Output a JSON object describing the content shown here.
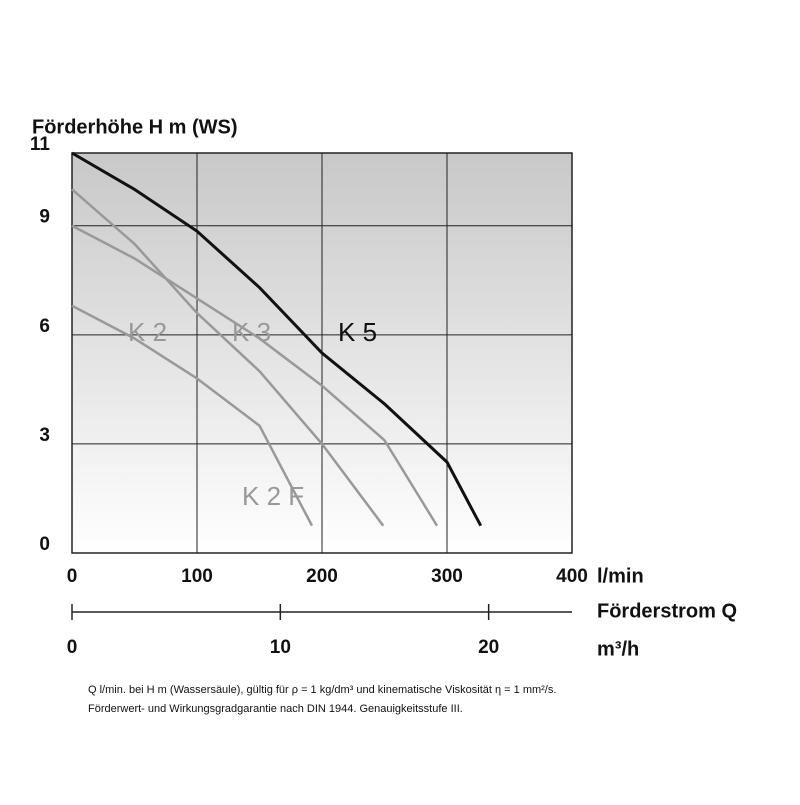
{
  "chart_data": {
    "type": "line",
    "y_label": "Förderhöhe H m (WS)",
    "x_label": "l/min",
    "x2_label": "Förderstrom Q",
    "x2_unit": "m³/h",
    "xlim": [
      0,
      400
    ],
    "xticks": [
      0,
      100,
      200,
      300,
      400
    ],
    "x2lim": [
      0,
      24
    ],
    "x2ticks": [
      0,
      10,
      20
    ],
    "ylim": [
      0,
      11
    ],
    "yticks": [
      0,
      3,
      6,
      9,
      11
    ],
    "grid": true,
    "series": [
      {
        "name": "K 5",
        "color": "#111111",
        "x": [
          0,
          50,
          100,
          150,
          200,
          250,
          300,
          327
        ],
        "values": [
          11,
          10,
          8.85,
          7.3,
          5.5,
          4.1,
          2.5,
          0.75
        ]
      },
      {
        "name": "K 3",
        "color": "#999999",
        "x": [
          0,
          50,
          100,
          150,
          200,
          250,
          292
        ],
        "values": [
          9,
          8.1,
          7,
          5.9,
          4.6,
          3.1,
          0.75
        ]
      },
      {
        "name": "K 2",
        "color": "#999999",
        "x": [
          0,
          50,
          100,
          150,
          200,
          249
        ],
        "values": [
          10,
          8.5,
          6.6,
          5,
          3,
          0.75
        ]
      },
      {
        "name": "K 2 F",
        "color": "#999999",
        "x": [
          0,
          50,
          100,
          150,
          192
        ],
        "values": [
          6.8,
          5.9,
          4.8,
          3.5,
          0.75
        ]
      }
    ],
    "notes": [
      "Q l/min. bei H m (Wassersäule), gültig für ρ = 1 kg/dm³ und kinematische Viskosität η = 1 mm²/s.",
      "Förderwert- und Wirkungsgradgarantie nach DIN 1944. Genauigkeitsstufe III."
    ]
  }
}
